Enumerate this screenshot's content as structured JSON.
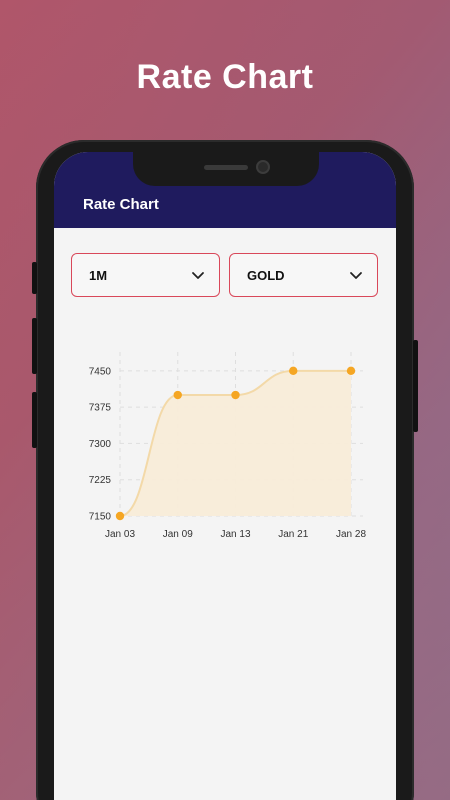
{
  "promo": {
    "title": "Rate Chart"
  },
  "appbar": {
    "title": "Rate Chart"
  },
  "filters": {
    "period": {
      "value": "1M",
      "icon": "chevron-down-icon"
    },
    "metal": {
      "value": "GOLD",
      "icon": "chevron-down-icon"
    }
  },
  "colors": {
    "appbar": "#1f1b5e",
    "accent_border": "#d9485a",
    "point": "#f5a623",
    "area_fill": "#f8ecd8",
    "line": "#f3d9a8"
  },
  "chart_data": {
    "type": "area",
    "title": "",
    "xlabel": "",
    "ylabel": "",
    "x": [
      "Jan 03",
      "Jan 09",
      "Jan 13",
      "Jan 21",
      "Jan 28"
    ],
    "series": [
      {
        "values": [
          7150,
          7400,
          7400,
          7450,
          7450
        ]
      }
    ],
    "yticks": [
      7150,
      7225,
      7300,
      7375,
      7450
    ],
    "ylim": [
      7150,
      7460
    ],
    "grid": true,
    "legend": "none"
  }
}
